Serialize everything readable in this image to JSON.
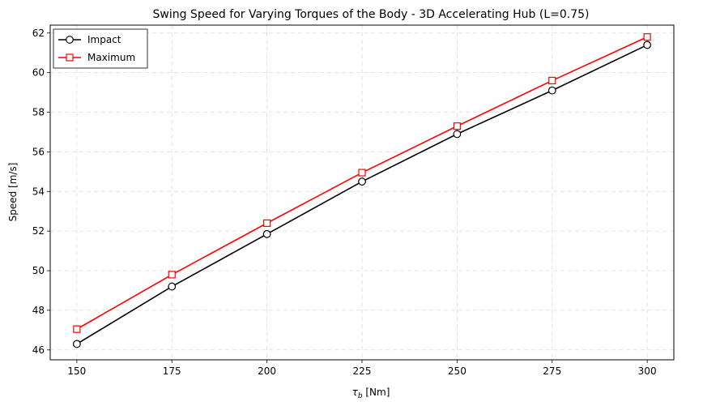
{
  "chart_data": {
    "type": "line",
    "title": "Swing Speed for Varying Torques of the Body - 3D Accelerating Hub (L=0.75)",
    "xlabel_symbol": "τ",
    "xlabel_sub": "b",
    "xlabel_unit": " [Nm]",
    "ylabel": "Speed [m/s]",
    "x": [
      150,
      175,
      200,
      225,
      250,
      275,
      300
    ],
    "xlim": [
      143,
      307
    ],
    "ylim": [
      45.5,
      62.4
    ],
    "xticks": [
      150,
      175,
      200,
      225,
      250,
      275,
      300
    ],
    "yticks": [
      46,
      48,
      50,
      52,
      54,
      56,
      58,
      60,
      62
    ],
    "grid": true,
    "legend_position": "top-left",
    "series": [
      {
        "name": "Impact",
        "color": "#000000",
        "marker": "circle",
        "values": [
          46.3,
          49.2,
          51.85,
          54.5,
          56.9,
          59.1,
          61.4
        ]
      },
      {
        "name": "Maximum",
        "color": "#ff0000",
        "marker": "square",
        "values": [
          47.05,
          49.8,
          52.4,
          54.95,
          57.3,
          59.6,
          61.8
        ]
      }
    ]
  }
}
